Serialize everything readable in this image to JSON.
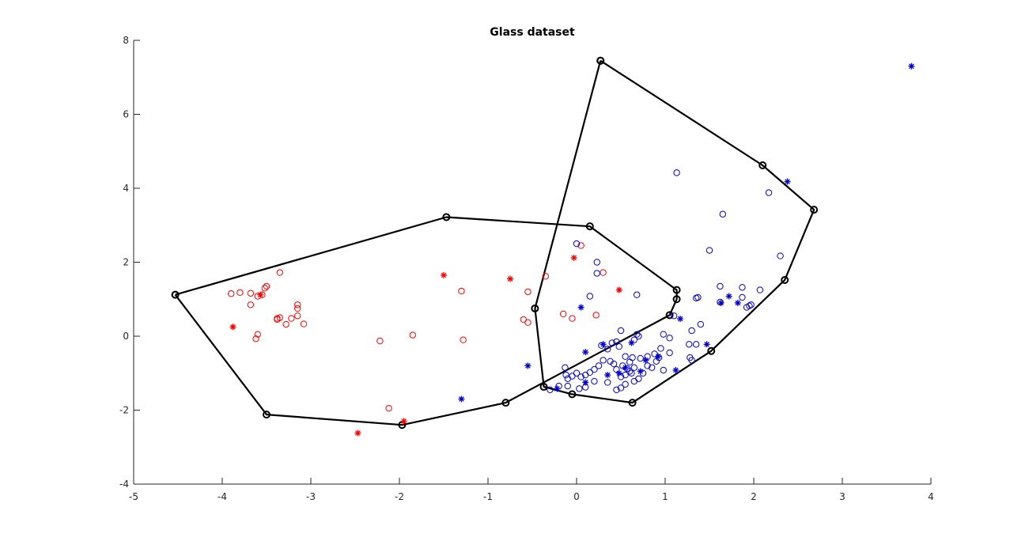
{
  "chart_data": {
    "type": "scatter",
    "title": "Glass dataset",
    "xlabel": "",
    "ylabel": "",
    "xlim": [
      -5,
      4
    ],
    "ylim": [
      -4,
      8
    ],
    "xticks": [
      -5,
      -4,
      -3,
      -2,
      -1,
      0,
      1,
      2,
      3,
      4
    ],
    "yticks": [
      -4,
      -2,
      0,
      2,
      4,
      6,
      8
    ],
    "grid": false,
    "colors": {
      "red": "#ff0000",
      "blue": "#0000cc",
      "hull": "#000000"
    },
    "series": [
      {
        "color": "red",
        "marker": "circle",
        "points": [
          [
            -3.9,
            1.15
          ],
          [
            -3.8,
            1.18
          ],
          [
            -3.68,
            1.16
          ],
          [
            -3.6,
            1.08
          ],
          [
            -3.55,
            1.12
          ],
          [
            -3.52,
            1.3
          ],
          [
            -3.5,
            1.35
          ],
          [
            -3.35,
            1.72
          ],
          [
            -3.68,
            0.85
          ],
          [
            -3.15,
            0.85
          ],
          [
            -3.15,
            0.75
          ],
          [
            -3.15,
            0.55
          ],
          [
            -3.22,
            0.48
          ],
          [
            -3.38,
            0.48
          ],
          [
            -3.35,
            0.5
          ],
          [
            -3.28,
            0.32
          ],
          [
            -3.08,
            0.33
          ],
          [
            -3.38,
            0.45
          ],
          [
            -3.6,
            0.05
          ],
          [
            -3.62,
            -0.07
          ],
          [
            -2.22,
            -0.13
          ],
          [
            -1.85,
            0.03
          ],
          [
            -1.3,
            1.22
          ],
          [
            -1.28,
            -0.1
          ],
          [
            -2.12,
            -1.95
          ],
          [
            -0.55,
            1.2
          ],
          [
            -0.35,
            1.62
          ],
          [
            -0.6,
            0.45
          ],
          [
            -0.55,
            0.37
          ],
          [
            0.05,
            2.45
          ],
          [
            0.3,
            1.72
          ],
          [
            -0.15,
            0.6
          ],
          [
            -0.05,
            0.48
          ],
          [
            0.22,
            0.57
          ]
        ]
      },
      {
        "color": "red",
        "marker": "star",
        "points": [
          [
            -3.57,
            1.12
          ],
          [
            -3.88,
            0.25
          ],
          [
            -1.5,
            1.65
          ],
          [
            -0.75,
            1.55
          ],
          [
            -0.03,
            2.12
          ],
          [
            0.48,
            1.25
          ],
          [
            -1.95,
            -2.3
          ],
          [
            -2.47,
            -2.62
          ]
        ]
      },
      {
        "color": "blue",
        "marker": "circle",
        "points": [
          [
            0.0,
            2.5
          ],
          [
            0.23,
            2.0
          ],
          [
            0.23,
            1.7
          ],
          [
            0.15,
            1.08
          ],
          [
            0.68,
            1.12
          ],
          [
            1.13,
            4.42
          ],
          [
            1.65,
            3.3
          ],
          [
            2.17,
            3.88
          ],
          [
            1.5,
            2.32
          ],
          [
            2.3,
            2.17
          ],
          [
            1.62,
            1.35
          ],
          [
            1.87,
            1.32
          ],
          [
            2.07,
            1.25
          ],
          [
            1.37,
            1.05
          ],
          [
            1.35,
            1.03
          ],
          [
            1.62,
            0.92
          ],
          [
            1.87,
            1.05
          ],
          [
            1.95,
            0.82
          ],
          [
            1.97,
            0.85
          ],
          [
            1.92,
            0.78
          ],
          [
            1.4,
            0.32
          ],
          [
            1.3,
            0.15
          ],
          [
            1.1,
            0.55
          ],
          [
            0.5,
            0.15
          ],
          [
            0.68,
            0.05
          ],
          [
            0.98,
            0.05
          ],
          [
            1.05,
            -0.05
          ],
          [
            0.7,
            0.0
          ],
          [
            0.65,
            -0.1
          ],
          [
            0.45,
            -0.15
          ],
          [
            0.4,
            -0.18
          ],
          [
            0.48,
            -0.28
          ],
          [
            0.28,
            -0.25
          ],
          [
            0.35,
            -0.35
          ],
          [
            0.55,
            -0.55
          ],
          [
            0.63,
            -0.58
          ],
          [
            0.72,
            -0.6
          ],
          [
            0.8,
            -0.55
          ],
          [
            0.88,
            -0.48
          ],
          [
            0.93,
            -0.58
          ],
          [
            0.95,
            -0.33
          ],
          [
            1.27,
            -0.22
          ],
          [
            1.35,
            -0.22
          ],
          [
            1.05,
            -0.45
          ],
          [
            1.28,
            -0.58
          ],
          [
            1.3,
            -0.65
          ],
          [
            0.98,
            -0.92
          ],
          [
            0.8,
            -0.8
          ],
          [
            0.65,
            -0.85
          ],
          [
            0.6,
            -0.95
          ],
          [
            0.55,
            -1.05
          ],
          [
            0.5,
            -1.1
          ],
          [
            0.45,
            -0.9
          ],
          [
            0.42,
            -0.75
          ],
          [
            0.38,
            -0.68
          ],
          [
            0.3,
            -0.65
          ],
          [
            0.25,
            -0.8
          ],
          [
            0.2,
            -0.9
          ],
          [
            0.15,
            -0.98
          ],
          [
            0.1,
            -1.05
          ],
          [
            0.05,
            -1.1
          ],
          [
            0.0,
            -1.0
          ],
          [
            -0.05,
            -1.08
          ],
          [
            -0.1,
            -1.15
          ],
          [
            -0.13,
            -0.85
          ],
          [
            -0.12,
            -1.05
          ],
          [
            -0.1,
            -1.35
          ],
          [
            -0.2,
            -1.35
          ],
          [
            -0.3,
            -1.45
          ],
          [
            0.03,
            -1.42
          ],
          [
            0.1,
            -1.38
          ],
          [
            0.2,
            -1.22
          ],
          [
            0.35,
            -1.25
          ],
          [
            0.45,
            -1.45
          ],
          [
            0.5,
            -1.4
          ],
          [
            0.55,
            -1.3
          ],
          [
            0.65,
            -1.22
          ],
          [
            0.7,
            -1.15
          ],
          [
            0.75,
            -1.0
          ],
          [
            0.85,
            -0.85
          ],
          [
            0.9,
            -0.68
          ],
          [
            0.6,
            -0.7
          ],
          [
            0.52,
            -0.8
          ],
          [
            0.57,
            -0.88
          ],
          [
            0.62,
            -1.0
          ]
        ]
      },
      {
        "color": "blue",
        "marker": "star",
        "points": [
          [
            3.78,
            7.3
          ],
          [
            2.38,
            4.18
          ],
          [
            0.05,
            0.78
          ],
          [
            1.72,
            1.08
          ],
          [
            1.82,
            0.9
          ],
          [
            1.63,
            0.9
          ],
          [
            1.17,
            0.47
          ],
          [
            1.47,
            -0.22
          ],
          [
            1.12,
            -0.92
          ],
          [
            0.62,
            -0.18
          ],
          [
            0.3,
            -0.22
          ],
          [
            0.1,
            -0.43
          ],
          [
            -0.55,
            -0.8
          ],
          [
            -1.3,
            -1.7
          ],
          [
            -0.22,
            -1.42
          ],
          [
            0.1,
            -1.25
          ],
          [
            0.48,
            -1.0
          ],
          [
            0.55,
            -0.85
          ],
          [
            0.72,
            -0.95
          ],
          [
            0.78,
            -0.65
          ],
          [
            0.92,
            -0.55
          ],
          [
            0.35,
            -1.05
          ]
        ]
      }
    ],
    "hulls": [
      {
        "name": "red hull",
        "vertices": [
          [
            -4.53,
            1.12
          ],
          [
            -1.47,
            3.22
          ],
          [
            0.15,
            2.97
          ],
          [
            1.13,
            1.25
          ],
          [
            1.13,
            1.0
          ],
          [
            1.05,
            0.57
          ],
          [
            -0.8,
            -1.8
          ],
          [
            -1.97,
            -2.4
          ],
          [
            -3.5,
            -2.12
          ],
          [
            -4.53,
            1.12
          ]
        ]
      },
      {
        "name": "blue hull",
        "vertices": [
          [
            0.27,
            7.45
          ],
          [
            2.1,
            4.62
          ],
          [
            2.68,
            3.42
          ],
          [
            2.35,
            1.52
          ],
          [
            1.52,
            -0.4
          ],
          [
            0.63,
            -1.8
          ],
          [
            -0.05,
            -1.57
          ],
          [
            -0.37,
            -1.37
          ],
          [
            -0.47,
            0.75
          ],
          [
            0.27,
            7.45
          ]
        ]
      }
    ]
  }
}
